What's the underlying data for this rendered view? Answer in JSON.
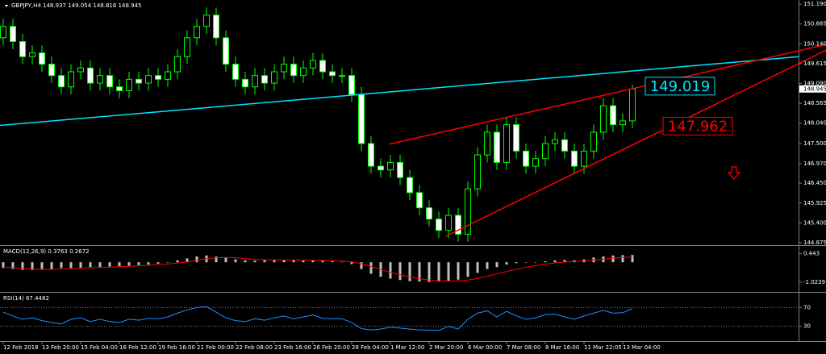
{
  "chart_data": {
    "type": "candlestick",
    "title": "GBPJPY,H4  148.937 149.054 148.816 148.945",
    "categories": [
      "12 Feb 2018",
      null,
      null,
      null,
      "13 Feb 20:00",
      null,
      null,
      null,
      "15 Feb 04:00",
      null,
      null,
      null,
      "16 Feb 12:00",
      null,
      null,
      null,
      "19 Feb 16:00",
      null,
      null,
      null,
      "21 Feb 00:00",
      null,
      null,
      null,
      "22 Feb 08:00",
      null,
      null,
      null,
      "23 Feb 16:00",
      null,
      null,
      null,
      "26 Feb 20:00",
      null,
      null,
      null,
      "28 Feb 04:00",
      null,
      null,
      null,
      "1 Mar 12:00",
      null,
      null,
      null,
      "2 Mar 20:00",
      null,
      null,
      null,
      "6 Mar 00:00",
      null,
      null,
      null,
      "7 Mar 08:00",
      null,
      null,
      null,
      "8 Mar 16:00",
      null,
      null,
      null,
      "11 Mar 22:05",
      null,
      null,
      null,
      "13 Mar 04:00",
      null
    ],
    "open": [
      150.3,
      150.6,
      150.2,
      149.8,
      149.9,
      149.6,
      149.3,
      149.0,
      149.4,
      149.5,
      149.1,
      149.3,
      149.0,
      148.9,
      149.2,
      149.1,
      149.3,
      149.2,
      149.4,
      149.8,
      150.3,
      150.6,
      150.9,
      150.3,
      149.6,
      149.2,
      149.0,
      149.3,
      149.1,
      149.4,
      149.6,
      149.3,
      149.5,
      149.7,
      149.4,
      149.3,
      149.3,
      148.8,
      147.5,
      146.9,
      146.8,
      147.0,
      146.6,
      146.2,
      145.8,
      145.5,
      145.2,
      145.6,
      145.1,
      146.3,
      147.2,
      147.8,
      147.0,
      148.0,
      147.3,
      146.9,
      147.1,
      147.5,
      147.6,
      147.3,
      146.9,
      147.3,
      147.8,
      148.5,
      148.0,
      148.1
    ],
    "high": [
      150.8,
      150.8,
      150.4,
      150.1,
      150.1,
      149.8,
      149.5,
      149.6,
      149.7,
      149.7,
      149.5,
      149.5,
      149.2,
      149.4,
      149.4,
      149.5,
      149.5,
      149.6,
      150.0,
      150.5,
      150.8,
      151.1,
      151.1,
      150.5,
      149.8,
      149.4,
      149.5,
      149.5,
      149.6,
      149.8,
      149.8,
      149.7,
      149.9,
      149.9,
      149.6,
      149.5,
      149.5,
      149.0,
      147.7,
      147.1,
      147.2,
      147.2,
      146.8,
      146.4,
      146.0,
      145.7,
      145.8,
      145.8,
      146.5,
      147.4,
      148.0,
      148.0,
      148.2,
      148.2,
      147.5,
      147.3,
      147.7,
      147.8,
      147.8,
      147.5,
      147.5,
      148.0,
      148.7,
      148.7,
      148.3,
      149.054
    ],
    "low": [
      150.1,
      150.0,
      149.6,
      149.6,
      149.4,
      149.1,
      148.8,
      148.8,
      149.2,
      148.9,
      148.9,
      148.8,
      148.7,
      148.7,
      148.9,
      148.9,
      149.0,
      149.0,
      149.2,
      149.6,
      150.1,
      150.4,
      150.1,
      149.4,
      149.0,
      148.8,
      148.8,
      148.9,
      148.9,
      149.2,
      149.1,
      149.1,
      149.3,
      149.2,
      149.1,
      149.1,
      148.6,
      147.3,
      146.7,
      146.6,
      146.6,
      146.4,
      146.0,
      145.6,
      145.3,
      145.0,
      145.0,
      144.9,
      144.9,
      146.1,
      147.0,
      146.8,
      146.8,
      147.1,
      146.7,
      146.7,
      146.9,
      147.3,
      147.1,
      146.7,
      146.7,
      147.1,
      147.6,
      147.8,
      147.8,
      147.9
    ],
    "close": [
      150.6,
      150.2,
      149.8,
      149.9,
      149.6,
      149.3,
      149.0,
      149.4,
      149.5,
      149.1,
      149.3,
      149.0,
      148.9,
      149.2,
      149.1,
      149.3,
      149.2,
      149.4,
      149.8,
      150.3,
      150.6,
      150.9,
      150.3,
      149.6,
      149.2,
      149.0,
      149.3,
      149.1,
      149.4,
      149.6,
      149.3,
      149.5,
      149.7,
      149.4,
      149.3,
      149.3,
      148.8,
      147.5,
      146.9,
      146.8,
      147.0,
      146.6,
      146.2,
      145.8,
      145.5,
      145.2,
      145.6,
      145.1,
      146.3,
      147.2,
      147.8,
      147.0,
      148.0,
      147.3,
      146.9,
      147.1,
      147.5,
      147.6,
      147.3,
      146.9,
      147.3,
      147.8,
      148.5,
      148.0,
      148.1,
      148.945
    ],
    "up_color": "#000000",
    "down_color": "#ffffff",
    "wick_color": "#00ff00",
    "ylim": [
      144.81,
      151.3
    ],
    "yticks": [
      {
        "value": 151.19,
        "label": "151.190"
      },
      150.665,
      {
        "value": 150.14,
        "label": "150.140"
      },
      149.615,
      {
        "value": 149.09,
        "label": "149.090"
      },
      148.565,
      {
        "value": 148.04,
        "label": "148.040"
      },
      {
        "value": 147.5,
        "label": "147.500"
      },
      {
        "value": 146.97,
        "label": "146.970"
      },
      {
        "value": 146.45,
        "label": "146.450"
      },
      145.925,
      {
        "value": 145.4,
        "label": "145.400"
      },
      144.875
    ],
    "last_price": 148.945,
    "grid": false,
    "trendlines": [
      {
        "color": "#00e5ff",
        "x": [
          -0.33,
          82.2
        ],
        "y": [
          147.98,
          149.8
        ]
      },
      {
        "color": "#ff0000",
        "x": [
          39.9,
          85
        ],
        "y": [
          147.485,
          150.12
        ]
      },
      {
        "color": "#ff0000",
        "x": [
          45.75,
          85
        ],
        "y": [
          145.05,
          149.97
        ]
      }
    ],
    "annotations": [
      {
        "text": "149.019",
        "color": "#00e5ff",
        "price": 149.019
      },
      {
        "text": "147.962",
        "color": "#ff0000",
        "price": 147.962
      }
    ],
    "macd": {
      "label": "MACD(12,26,9) 0.3763 0.2672",
      "histogram": [
        -0.3,
        -0.35,
        -0.4,
        -0.4,
        -0.38,
        -0.35,
        -0.3,
        -0.3,
        -0.28,
        -0.25,
        -0.25,
        -0.22,
        -0.2,
        -0.18,
        -0.15,
        -0.12,
        -0.08,
        0.0,
        0.1,
        0.2,
        0.3,
        0.35,
        0.3,
        0.25,
        0.15,
        0.1,
        0.08,
        0.1,
        0.12,
        0.12,
        0.1,
        0.1,
        0.1,
        0.08,
        0.05,
        0.02,
        -0.1,
        -0.35,
        -0.6,
        -0.75,
        -0.85,
        -0.92,
        -0.98,
        -1.0,
        -1.02,
        -1.0,
        -0.95,
        -0.9,
        -0.75,
        -0.55,
        -0.35,
        -0.25,
        -0.12,
        -0.05,
        -0.02,
        0.0,
        0.05,
        0.1,
        0.12,
        0.1,
        0.15,
        0.25,
        0.3,
        0.35,
        0.37,
        0.3763
      ],
      "signal": [
        -0.25,
        -0.28,
        -0.32,
        -0.35,
        -0.37,
        -0.37,
        -0.35,
        -0.33,
        -0.31,
        -0.29,
        -0.27,
        -0.25,
        -0.23,
        -0.21,
        -0.19,
        -0.16,
        -0.13,
        -0.09,
        -0.04,
        0.02,
        0.1,
        0.18,
        0.23,
        0.25,
        0.23,
        0.19,
        0.15,
        0.13,
        0.12,
        0.12,
        0.11,
        0.1,
        0.1,
        0.09,
        0.08,
        0.06,
        0.02,
        -0.08,
        -0.22,
        -0.38,
        -0.52,
        -0.65,
        -0.76,
        -0.85,
        -0.92,
        -0.96,
        -0.97,
        -0.96,
        -0.92,
        -0.84,
        -0.72,
        -0.6,
        -0.48,
        -0.36,
        -0.26,
        -0.18,
        -0.1,
        -0.04,
        0.01,
        0.04,
        0.08,
        0.12,
        0.16,
        0.21,
        0.25,
        0.2672
      ],
      "hist_color": "#c0c0c0",
      "signal_color": "#ff0000",
      "ylim": [
        -1.45,
        0.8
      ],
      "yticks": [
        0.443,
        -1.0239
      ]
    },
    "rsi": {
      "label": "RSI(14) 67.4482",
      "values": [
        60,
        52,
        45,
        48,
        42,
        38,
        35,
        45,
        48,
        40,
        45,
        40,
        38,
        45,
        43,
        47,
        46,
        50,
        58,
        65,
        70,
        72,
        60,
        48,
        42,
        40,
        46,
        43,
        48,
        52,
        46,
        50,
        54,
        47,
        46,
        46,
        38,
        25,
        22,
        24,
        28,
        26,
        24,
        22,
        22,
        21,
        30,
        24,
        45,
        58,
        63,
        50,
        62,
        52,
        45,
        48,
        55,
        56,
        50,
        45,
        52,
        58,
        64,
        58,
        59,
        67.4482
      ],
      "color": "#1e90ff",
      "ylim": [
        0,
        100
      ],
      "yticks": [
        70,
        30
      ]
    }
  }
}
